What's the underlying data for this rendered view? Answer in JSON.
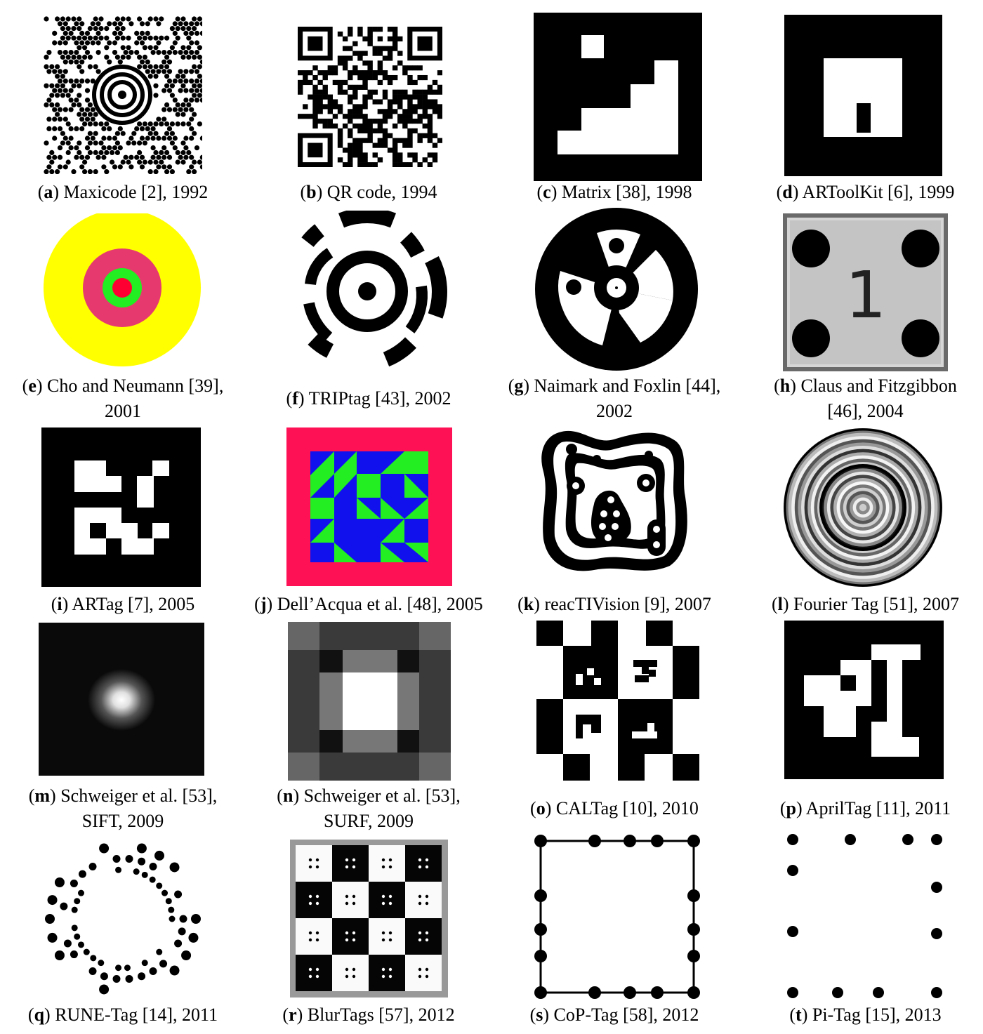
{
  "figure": {
    "panels": [
      {
        "letter": "a",
        "caption": "Maxicode [2], 1992"
      },
      {
        "letter": "b",
        "caption": "QR code, 1994"
      },
      {
        "letter": "c",
        "caption": "Matrix [38], 1998"
      },
      {
        "letter": "d",
        "caption": "ARToolKit [6], 1999"
      },
      {
        "letter": "e",
        "caption": "Cho and Neumann [39],",
        "caption2": "2001"
      },
      {
        "letter": "f",
        "caption": "TRIPtag [43], 2002"
      },
      {
        "letter": "g",
        "caption": "Naimark and Foxlin [44],",
        "caption2": "2002"
      },
      {
        "letter": "h",
        "caption": "Claus and Fitzgibbon",
        "caption2": "[46], 2004",
        "glyph": "1"
      },
      {
        "letter": "i",
        "caption": "ARTag [7], 2005"
      },
      {
        "letter": "j",
        "caption": "Dell’Acqua et al. [48], 2005"
      },
      {
        "letter": "k",
        "caption": "reacTIVision [9], 2007"
      },
      {
        "letter": "l",
        "caption": "Fourier Tag [51], 2007"
      },
      {
        "letter": "m",
        "caption": "Schweiger et al. [53],",
        "caption2": "SIFT, 2009"
      },
      {
        "letter": "n",
        "caption": "Schweiger et al. [53],",
        "caption2": "SURF, 2009"
      },
      {
        "letter": "o",
        "caption": "CALTag [10], 2010"
      },
      {
        "letter": "p",
        "caption": "AprilTag [11], 2011"
      },
      {
        "letter": "q",
        "caption": "RUNE-Tag [14], 2011"
      },
      {
        "letter": "r",
        "caption": "BlurTags [57], 2012"
      },
      {
        "letter": "s",
        "caption": "CoP-Tag [58], 2012"
      },
      {
        "letter": "t",
        "caption": "Pi-Tag [15], 2013"
      }
    ]
  }
}
